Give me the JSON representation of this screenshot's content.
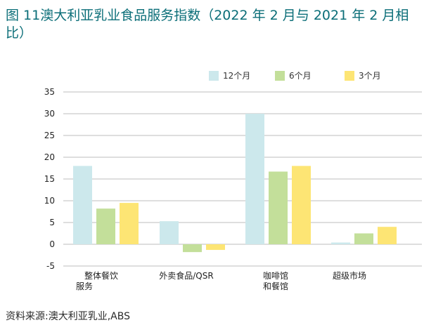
{
  "title": "图 11澳大利亚乳业食品服务指数（2022 年 2 月与 2021 年 2 月相比）",
  "source": "资料来源:澳大利亚乳业,ABS",
  "chart_data": {
    "type": "bar",
    "title": "",
    "xlabel": "",
    "ylabel": "",
    "ylim": [
      -5,
      35
    ],
    "yticks": [
      35,
      30,
      25,
      20,
      15,
      10,
      5,
      0,
      -5
    ],
    "grid": true,
    "legend": "top",
    "categories": [
      [
        "整体餐饮",
        "服务"
      ],
      [
        "外卖食品/QSR"
      ],
      [
        "咖啡馆",
        "和餐馆"
      ],
      [
        "超级市场"
      ]
    ],
    "series": [
      {
        "name": "12个月",
        "color": "#cce8ec",
        "values": [
          18,
          5.3,
          30,
          0.4
        ]
      },
      {
        "name": "6个月",
        "color": "#c3df9a",
        "values": [
          8.2,
          -1.8,
          16.7,
          2.5
        ]
      },
      {
        "name": "3个月",
        "color": "#fde574",
        "values": [
          9.5,
          -1.3,
          18,
          4
        ]
      }
    ]
  }
}
